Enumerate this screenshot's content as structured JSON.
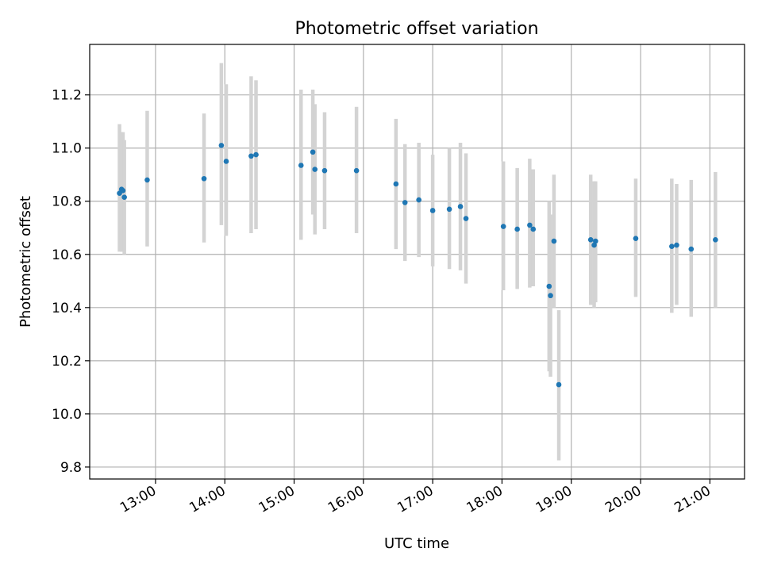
{
  "chart_data": {
    "type": "scatter",
    "title": "Photometric offset variation",
    "xlabel": "UTC time",
    "ylabel": "Photometric offset",
    "x_unit": "hour",
    "xlim": [
      12.05,
      21.5
    ],
    "ylim": [
      9.755,
      11.39
    ],
    "x_ticks": [
      13,
      14,
      15,
      16,
      17,
      18,
      19,
      20,
      21
    ],
    "x_tick_labels": [
      "13:00",
      "14:00",
      "15:00",
      "16:00",
      "17:00",
      "18:00",
      "19:00",
      "20:00",
      "21:00"
    ],
    "y_ticks": [
      9.8,
      10.0,
      10.2,
      10.4,
      10.6,
      10.8,
      11.0,
      11.2
    ],
    "y_tick_labels": [
      "9.8",
      "10.0",
      "10.2",
      "10.4",
      "10.6",
      "10.8",
      "11.0",
      "11.2"
    ],
    "grid": true,
    "colors": {
      "point": "#1f77b4",
      "error_bar": "#d3d3d3",
      "grid": "#b0b0b0"
    },
    "points": [
      {
        "x": 12.48,
        "y": 10.83,
        "lo": 10.61,
        "hi": 11.09
      },
      {
        "x": 12.51,
        "y": 10.845,
        "lo": 10.61,
        "hi": 11.06
      },
      {
        "x": 12.53,
        "y": 10.84,
        "lo": 10.61,
        "hi": 11.06
      },
      {
        "x": 12.55,
        "y": 10.815,
        "lo": 10.6,
        "hi": 11.03
      },
      {
        "x": 12.88,
        "y": 10.88,
        "lo": 10.63,
        "hi": 11.14
      },
      {
        "x": 13.7,
        "y": 10.885,
        "lo": 10.645,
        "hi": 11.13
      },
      {
        "x": 13.95,
        "y": 11.01,
        "lo": 10.71,
        "hi": 11.32
      },
      {
        "x": 14.02,
        "y": 10.95,
        "lo": 10.67,
        "hi": 11.24
      },
      {
        "x": 14.38,
        "y": 10.97,
        "lo": 10.68,
        "hi": 11.27
      },
      {
        "x": 14.45,
        "y": 10.975,
        "lo": 10.695,
        "hi": 11.255
      },
      {
        "x": 15.1,
        "y": 10.935,
        "lo": 10.655,
        "hi": 11.22
      },
      {
        "x": 15.27,
        "y": 10.985,
        "lo": 10.75,
        "hi": 11.22
      },
      {
        "x": 15.3,
        "y": 10.92,
        "lo": 10.675,
        "hi": 11.165
      },
      {
        "x": 15.44,
        "y": 10.915,
        "lo": 10.695,
        "hi": 11.135
      },
      {
        "x": 15.9,
        "y": 10.915,
        "lo": 10.68,
        "hi": 11.155
      },
      {
        "x": 16.47,
        "y": 10.865,
        "lo": 10.62,
        "hi": 11.11
      },
      {
        "x": 16.6,
        "y": 10.795,
        "lo": 10.575,
        "hi": 11.015
      },
      {
        "x": 16.8,
        "y": 10.805,
        "lo": 10.59,
        "hi": 11.02
      },
      {
        "x": 17.0,
        "y": 10.765,
        "lo": 10.555,
        "hi": 10.975
      },
      {
        "x": 17.24,
        "y": 10.77,
        "lo": 10.545,
        "hi": 11.0
      },
      {
        "x": 17.4,
        "y": 10.78,
        "lo": 10.54,
        "hi": 11.02
      },
      {
        "x": 17.48,
        "y": 10.735,
        "lo": 10.49,
        "hi": 10.98
      },
      {
        "x": 18.02,
        "y": 10.705,
        "lo": 10.465,
        "hi": 10.95
      },
      {
        "x": 18.22,
        "y": 10.695,
        "lo": 10.47,
        "hi": 10.925
      },
      {
        "x": 18.4,
        "y": 10.71,
        "lo": 10.475,
        "hi": 10.96
      },
      {
        "x": 18.45,
        "y": 10.695,
        "lo": 10.48,
        "hi": 10.92
      },
      {
        "x": 18.68,
        "y": 10.48,
        "lo": 10.16,
        "hi": 10.8
      },
      {
        "x": 18.7,
        "y": 10.445,
        "lo": 10.14,
        "hi": 10.75
      },
      {
        "x": 18.75,
        "y": 10.65,
        "lo": 10.4,
        "hi": 10.9
      },
      {
        "x": 18.82,
        "y": 10.11,
        "lo": 9.825,
        "hi": 10.39
      },
      {
        "x": 19.28,
        "y": 10.655,
        "lo": 10.41,
        "hi": 10.9
      },
      {
        "x": 19.33,
        "y": 10.635,
        "lo": 10.4,
        "hi": 10.875
      },
      {
        "x": 19.35,
        "y": 10.65,
        "lo": 10.42,
        "hi": 10.875
      },
      {
        "x": 19.93,
        "y": 10.66,
        "lo": 10.44,
        "hi": 10.885
      },
      {
        "x": 20.45,
        "y": 10.63,
        "lo": 10.38,
        "hi": 10.885
      },
      {
        "x": 20.52,
        "y": 10.635,
        "lo": 10.41,
        "hi": 10.865
      },
      {
        "x": 20.73,
        "y": 10.62,
        "lo": 10.365,
        "hi": 10.88
      },
      {
        "x": 21.08,
        "y": 10.655,
        "lo": 10.4,
        "hi": 10.91
      }
    ]
  }
}
